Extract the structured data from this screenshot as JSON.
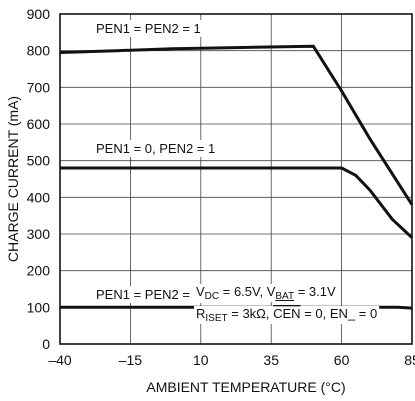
{
  "chart_data": {
    "type": "line",
    "xlabel": "AMBIENT TEMPERATURE (°C)",
    "ylabel": "CHARGE CURRENT (mA)",
    "xlim": [
      -40,
      85
    ],
    "ylim": [
      0,
      900
    ],
    "x_ticks": [
      "-40",
      "-15",
      "10",
      "35",
      "60",
      "85"
    ],
    "y_ticks": [
      "0",
      "100",
      "200",
      "300",
      "400",
      "500",
      "600",
      "700",
      "800",
      "900"
    ],
    "grid": true,
    "series": [
      {
        "name": "PEN1 = PEN2 = 1",
        "points": [
          [
            -40,
            795
          ],
          [
            -20,
            800
          ],
          [
            0,
            805
          ],
          [
            20,
            808
          ],
          [
            50,
            812
          ],
          [
            60,
            690
          ],
          [
            70,
            560
          ],
          [
            85,
            380
          ]
        ]
      },
      {
        "name": "PEN1 = 0, PEN2 = 1",
        "points": [
          [
            -40,
            480
          ],
          [
            0,
            480
          ],
          [
            40,
            480
          ],
          [
            60,
            480
          ],
          [
            65,
            460
          ],
          [
            70,
            420
          ],
          [
            78,
            340
          ],
          [
            85,
            290
          ]
        ]
      },
      {
        "name": "PEN1 = PEN2 = 0",
        "points": [
          [
            -40,
            100
          ],
          [
            0,
            100
          ],
          [
            40,
            100
          ],
          [
            80,
            100
          ],
          [
            85,
            98
          ]
        ]
      }
    ],
    "conditions": {
      "line1": {
        "vdc_main": "V",
        "vdc_sub": "DC",
        "vdc_val": " = 6.5V, V",
        "vbat_sub": "BAT",
        "vbat_val": " = 3.1V"
      },
      "line2": {
        "r_main": "R",
        "r_sub": "ISET",
        "r_val": " = 3kΩ, ",
        "cen": "CEN",
        "tail": " = 0, EN_ = 0"
      }
    }
  }
}
